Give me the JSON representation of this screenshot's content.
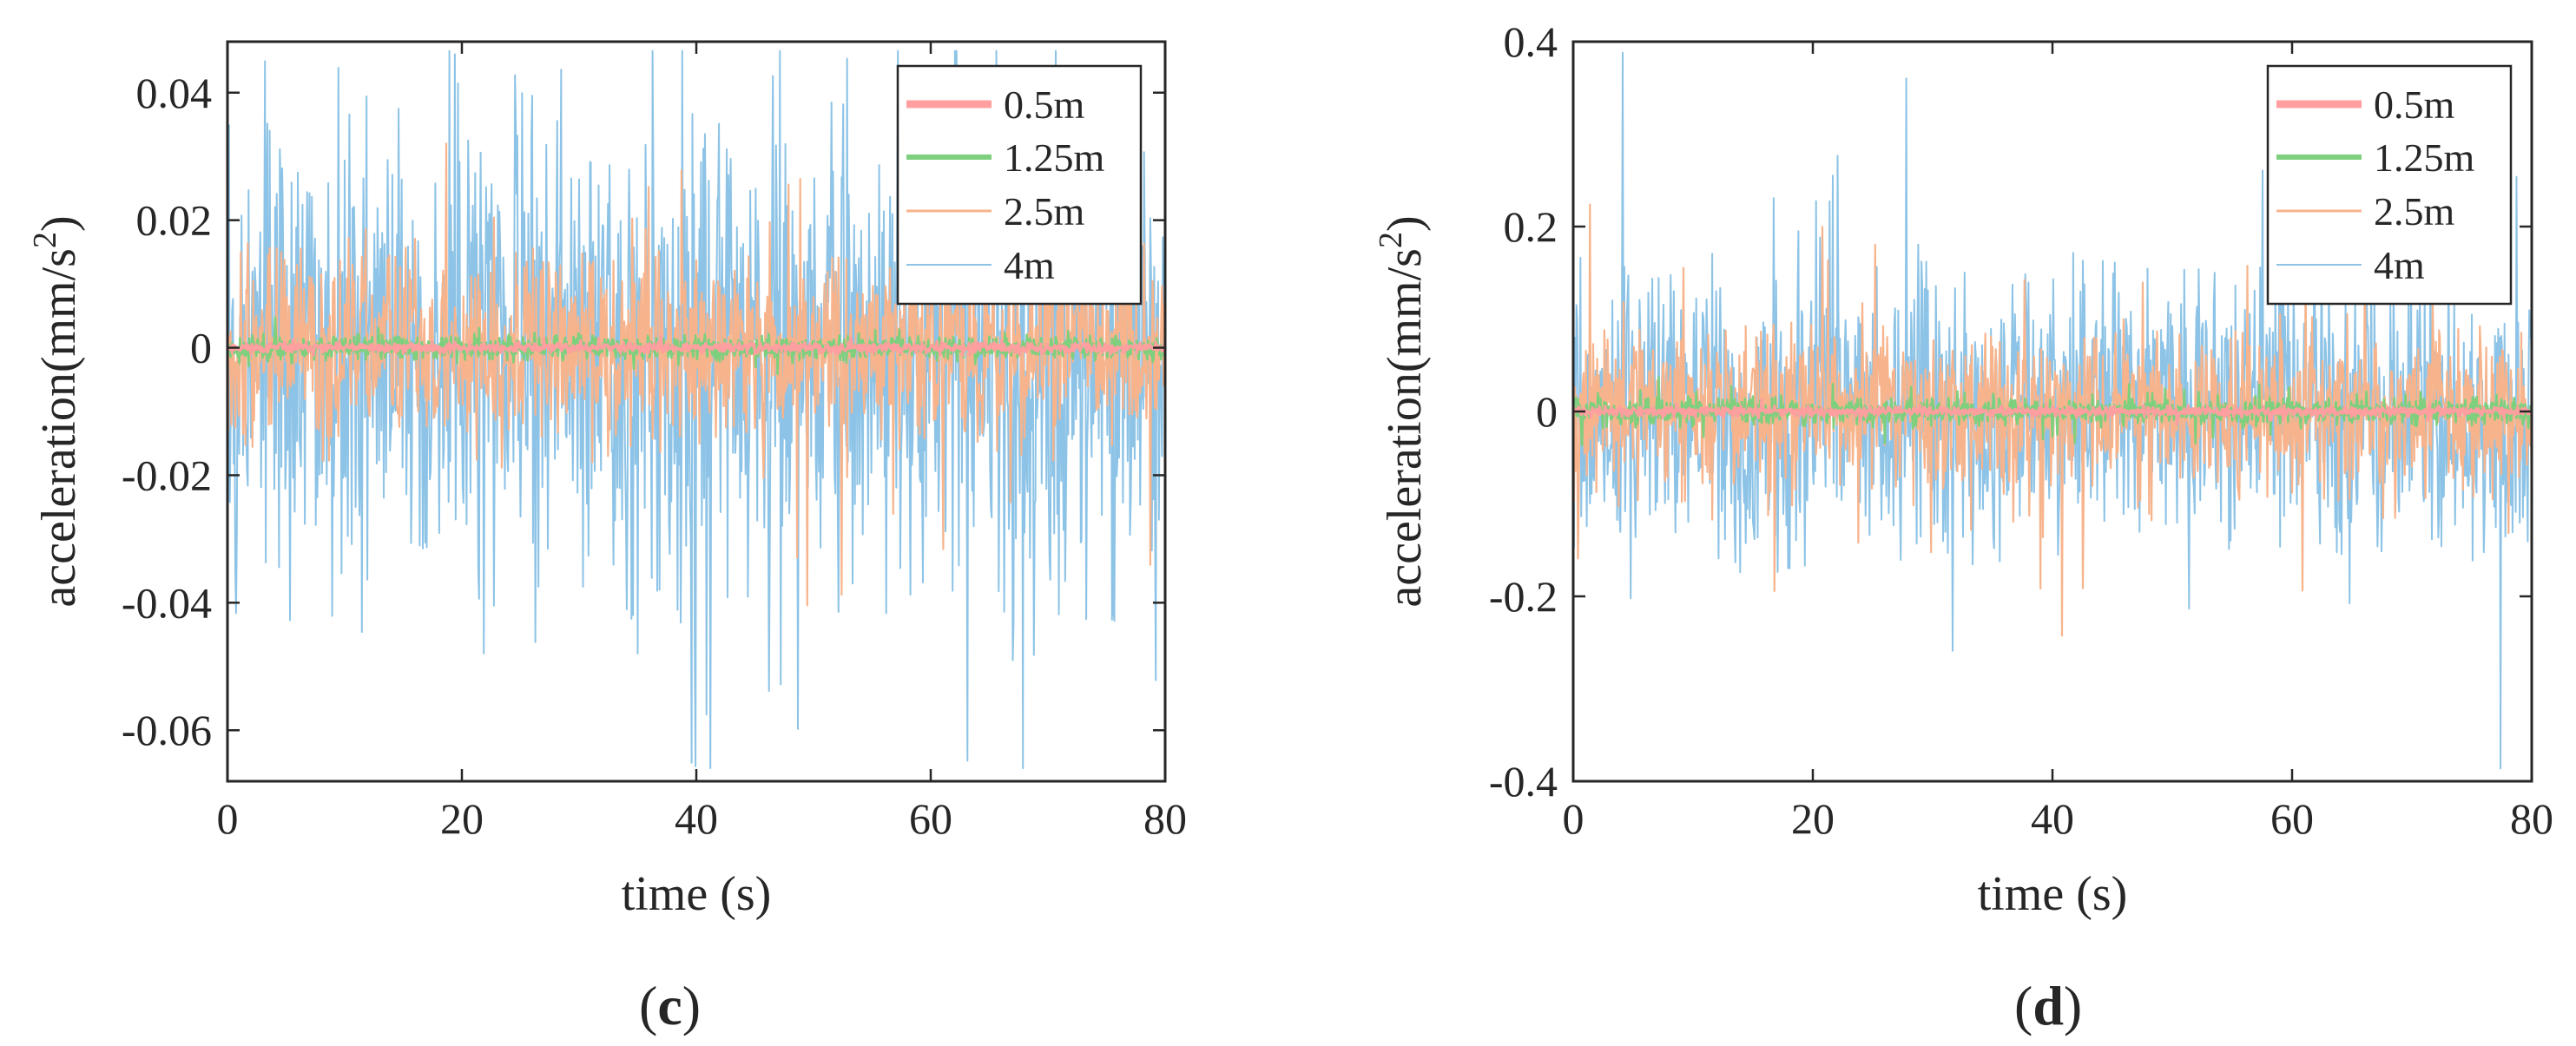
{
  "colors": {
    "s05": "#ff9f9f",
    "s125": "#7ecf7e",
    "s25": "#f7b48c",
    "s4": "#8cc3e6"
  },
  "chart_data": [
    {
      "type": "line",
      "panel_label": "c",
      "xlabel": "time (s)",
      "ylabel_main": "acceleration(mm/s",
      "ylabel_sup": "2",
      "ylabel_close": ")",
      "xlim": [
        0,
        80
      ],
      "ylim": [
        -0.068,
        0.048
      ],
      "xticks": [
        0,
        20,
        40,
        60,
        80
      ],
      "xtick_labels": [
        "0",
        "20",
        "40",
        "60",
        "80"
      ],
      "yticks": [
        -0.06,
        -0.04,
        -0.02,
        0,
        0.02,
        0.04
      ],
      "ytick_labels": [
        "-0.06",
        "-0.04",
        "-0.02",
        "0",
        "0.02",
        "0.04"
      ],
      "legend_position": "top-right",
      "series": [
        {
          "name": "0.5m",
          "color_key": "s05",
          "amplitude": 0.0006,
          "seed": 11
        },
        {
          "name": "1.25m",
          "color_key": "s125",
          "amplitude": 0.0015,
          "seed": 23
        },
        {
          "name": "2.5m",
          "color_key": "s25",
          "amplitude": 0.012,
          "seed": 37
        },
        {
          "name": "4m",
          "color_key": "s4",
          "amplitude": 0.03,
          "seed": 53
        }
      ]
    },
    {
      "type": "line",
      "panel_label": "d",
      "xlabel": "time (s)",
      "ylabel_main": "acceleration(mm/s",
      "ylabel_sup": "2",
      "ylabel_close": ")",
      "xlim": [
        0,
        80
      ],
      "ylim": [
        -0.4,
        0.4
      ],
      "xticks": [
        0,
        20,
        40,
        60,
        80
      ],
      "xtick_labels": [
        "0",
        "20",
        "40",
        "60",
        "80"
      ],
      "yticks": [
        -0.4,
        -0.2,
        0,
        0.2,
        0.4
      ],
      "ytick_labels": [
        "-0.4",
        "-0.2",
        "0",
        "0.2",
        "0.4"
      ],
      "legend_position": "top-right",
      "series": [
        {
          "name": "0.5m",
          "color_key": "s05",
          "amplitude": 0.004,
          "seed": 71
        },
        {
          "name": "1.25m",
          "color_key": "s125",
          "amplitude": 0.012,
          "seed": 83
        },
        {
          "name": "2.5m",
          "color_key": "s25",
          "amplitude": 0.07,
          "seed": 97
        },
        {
          "name": "4m",
          "color_key": "s4",
          "amplitude": 0.12,
          "seed": 109
        }
      ]
    }
  ]
}
